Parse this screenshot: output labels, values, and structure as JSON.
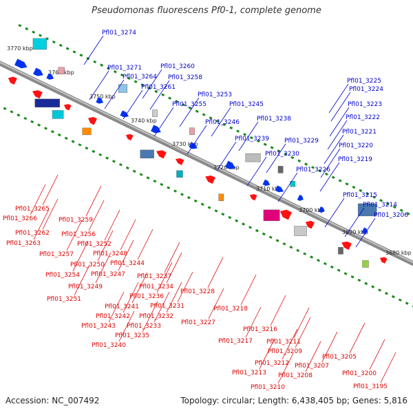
{
  "title": "Pseudomonas fluorescens Pf0-1, complete genome",
  "footer": {
    "accession": "Accession: NC_007492",
    "summary": "Topology: circular; Length: 6,438,405 bp; Genes: 5,816"
  },
  "colors": {
    "backbone": "#8a8a8a",
    "tick": "#1a8a1a",
    "forward_label": "#0000cc",
    "reverse_label": "#dd0000",
    "forward_gene": "#0033ee",
    "reverse_gene": "#ff1111"
  },
  "scale_labels": [
    "3770 kbp",
    "3760 kbp",
    "3750 kbp",
    "3740 kbp",
    "3730 kbp",
    "3720 kbp",
    "3710 kbp",
    "3700 kbp",
    "3690 kbp",
    "3680 kbp"
  ],
  "forward_labels": [
    "Pfl01_3274",
    "Pfl01_3271",
    "Pfl01_3260",
    "Pfl01_3264",
    "Pfl01_3258",
    "Pfl01_3261",
    "Pfl01_3253",
    "Pfl01_3255",
    "Pfl01_3245",
    "Pfl01_3246",
    "Pfl01_3238",
    "Pfl01_3239",
    "Pfl01_3229",
    "Pfl01_3230",
    "Pfl01_3226",
    "Pfl01_3225",
    "Pfl01_3224",
    "Pfl01_3223",
    "Pfl01_3222",
    "Pfl01_3221",
    "Pfl01_3220",
    "Pfl01_3219",
    "Pfl01_3215",
    "Pfl01_3214",
    "Pfl01_3206"
  ],
  "reverse_labels": [
    "Pfl01_3265",
    "Pfl01_3266",
    "Pfl01_3259",
    "Pfl01_3262",
    "Pfl01_3263",
    "Pfl01_3256",
    "Pfl01_3252",
    "Pfl01_3257",
    "Pfl01_3248",
    "Pfl01_3250",
    "Pfl01_3244",
    "Pfl01_3254",
    "Pfl01_3247",
    "Pfl01_3249",
    "Pfl01_3237",
    "Pfl01_3234",
    "Pfl01_3251",
    "Pfl01_3236",
    "Pfl01_3241",
    "Pfl01_3231",
    "Pfl01_3242",
    "Pfl01_3232",
    "Pfl01_3243",
    "Pfl01_3233",
    "Pfl01_3235",
    "Pfl01_3240",
    "Pfl01_3228",
    "Pfl01_3227",
    "Pfl01_3218",
    "Pfl01_3216",
    "Pfl01_3217",
    "Pfl01_3211",
    "Pfl01_3209",
    "Pfl01_3212",
    "Pfl01_3213",
    "Pfl01_3207",
    "Pfl01_3208",
    "Pfl01_3210",
    "Pfl01_3205",
    "Pfl01_3200",
    "Pfl01_3195"
  ]
}
